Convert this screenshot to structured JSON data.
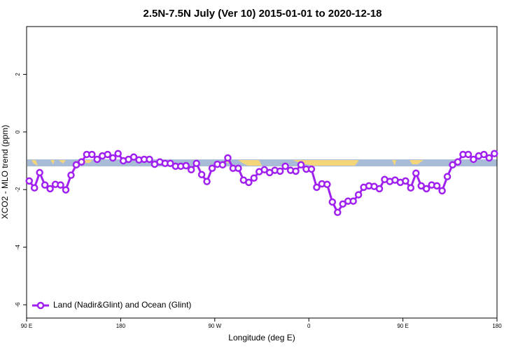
{
  "chart_data": {
    "type": "line",
    "title": "2.5N-7.5N July (Ver 10)   2015-01-01 to 2020-12-18",
    "x_label": "Longitude (deg E)",
    "y_label": "XCO2 - MLO trend (ppm)",
    "x": [
      92.5,
      97.5,
      102.5,
      107.5,
      112.5,
      117.5,
      122.5,
      127.5,
      132.5,
      137.5,
      142.5,
      147.5,
      152.5,
      157.5,
      162.5,
      167.5,
      172.5,
      177.5,
      182.5,
      187.5,
      192.5,
      197.5,
      202.5,
      207.5,
      212.5,
      217.5,
      222.5,
      227.5,
      232.5,
      237.5,
      242.5,
      247.5,
      252.5,
      257.5,
      262.5,
      267.5,
      272.5,
      277.5,
      282.5,
      287.5,
      292.5,
      297.5,
      302.5,
      307.5,
      312.5,
      317.5,
      322.5,
      327.5,
      332.5,
      337.5,
      342.5,
      347.5,
      352.5,
      357.5,
      362.5,
      367.5,
      372.5,
      377.5,
      382.5,
      387.5,
      392.5,
      397.5,
      402.5,
      407.5,
      412.5,
      417.5,
      422.5,
      427.5,
      432.5,
      437.5,
      442.5,
      447.5,
      452.5,
      457.5,
      462.5,
      467.5,
      472.5,
      477.5,
      482.5,
      487.5,
      492.5,
      497.5,
      502.5,
      507.5,
      512.5,
      517.5,
      522.5,
      527.5,
      532.5,
      537.5
    ],
    "series": [
      {
        "name": "Land (Nadir&Glint) and Ocean (Glint)",
        "color": "#a020f0",
        "values": [
          -1.7,
          -1.94,
          -1.41,
          -1.84,
          -1.97,
          -1.82,
          -1.84,
          -2.01,
          -1.5,
          -1.14,
          -1.04,
          -0.78,
          -0.78,
          -0.95,
          -0.83,
          -0.78,
          -0.9,
          -0.75,
          -1.0,
          -0.95,
          -0.87,
          -0.97,
          -0.95,
          -0.95,
          -1.12,
          -1.04,
          -1.09,
          -1.09,
          -1.19,
          -1.19,
          -1.17,
          -1.31,
          -1.09,
          -1.48,
          -1.72,
          -1.26,
          -1.12,
          -1.14,
          -0.9,
          -1.26,
          -1.26,
          -1.67,
          -1.75,
          -1.6,
          -1.38,
          -1.31,
          -1.41,
          -1.33,
          -1.36,
          -1.19,
          -1.33,
          -1.36,
          -1.14,
          -1.29,
          -1.29,
          -1.92,
          -1.8,
          -1.82,
          -2.43,
          -2.79,
          -2.5,
          -2.4,
          -2.4,
          -2.18,
          -1.92,
          -1.87,
          -1.89,
          -1.97,
          -1.65,
          -1.72,
          -1.67,
          -1.75,
          -1.7,
          -1.94,
          -1.43,
          -1.87,
          -1.97,
          -1.84,
          -1.87,
          -2.04,
          -1.55,
          -1.14,
          -1.04,
          -0.78,
          -0.78,
          -0.95,
          -0.83,
          -0.78,
          -0.9,
          -0.75
        ]
      }
    ],
    "xlim": [
      90,
      540
    ],
    "xticks": [
      {
        "value": 90,
        "label": "90 E"
      },
      180,
      {
        "value": 270,
        "label": "90 W"
      },
      {
        "value": 360,
        "label": "0"
      },
      {
        "value": 450,
        "label": "90 E"
      },
      {
        "value": 540,
        "label": "180"
      }
    ],
    "ylim": [
      -6.46,
      3.66
    ],
    "yticks": [
      2,
      0,
      -2,
      -4,
      -6
    ],
    "legend": "bottom-left"
  }
}
